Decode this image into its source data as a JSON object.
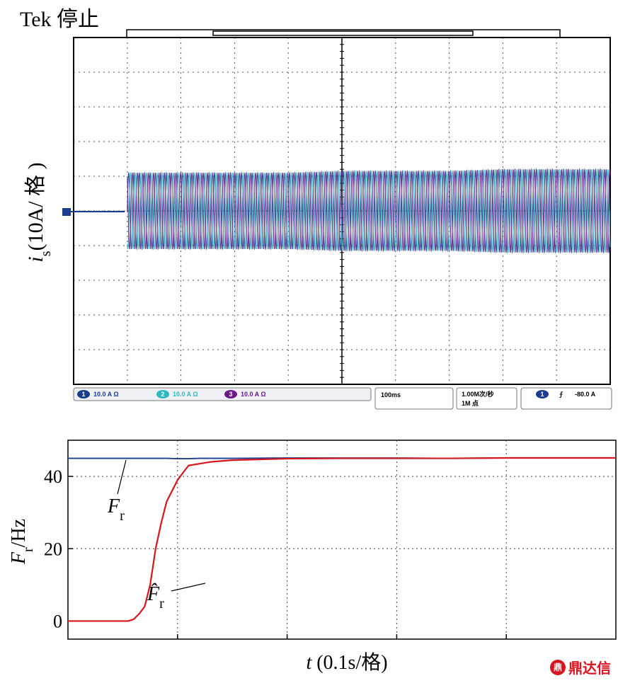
{
  "header": {
    "title": "Tek 停止"
  },
  "scope": {
    "ylabel_var": "i",
    "ylabel_sub": "s",
    "ylabel_unit": "(10A/ 格 )",
    "status": {
      "ch1": {
        "num": "1",
        "scale": "10.0 A Ω"
      },
      "ch2": {
        "num": "2",
        "scale": "10.0 A Ω"
      },
      "ch3": {
        "num": "3",
        "scale": "10.0 A Ω"
      },
      "timebase": "100ms",
      "sample_rate": "1.00M次/秒",
      "record_length": "1M 点",
      "trigger_channel": "1",
      "trigger_slope": "⨍",
      "trigger_level": "-80.0 A"
    },
    "colors": [
      "#1a3d8f",
      "#2fb8c0",
      "#6b1a87"
    ]
  },
  "chart_data": [
    {
      "type": "line",
      "title": "",
      "xlabel": "",
      "ylabel": "i_s(10A/ 格 )",
      "x": [
        0,
        0.09,
        0.1,
        0.2,
        0.3,
        0.4,
        0.5,
        0.6,
        0.7,
        0.8,
        0.9,
        1.0
      ],
      "series": [
        {
          "values": [
            0,
            0,
            11,
            11,
            11,
            11,
            11.5,
            11.5,
            11.5,
            12,
            12,
            12
          ]
        }
      ],
      "xlim": [
        0,
        1.0
      ],
      "ylim": [
        -50,
        50
      ],
      "grid": true
    },
    {
      "type": "line",
      "title": "",
      "xlabel_var": "t",
      "xlabel_unit": "(0.1s/格)",
      "ylabel_var": "F",
      "ylabel_sub": "r",
      "ylabel_unit": "/Hz",
      "yticks": [
        "0",
        "20",
        "40"
      ],
      "ylim": [
        -5,
        50
      ],
      "xlim": [
        0,
        0.5
      ],
      "grid": true,
      "x": [
        0,
        0.05,
        0.055,
        0.06,
        0.065,
        0.07,
        0.075,
        0.08,
        0.085,
        0.09,
        0.1,
        0.11,
        0.12,
        0.13,
        0.15,
        0.2,
        0.25,
        0.3,
        0.35,
        0.4,
        0.45,
        0.5
      ],
      "series": [
        {
          "name": "F_r",
          "values": [
            45,
            45,
            45,
            45,
            45,
            45,
            45,
            45,
            45,
            45,
            44.9,
            44.9,
            45,
            45,
            45,
            45.1,
            45.1,
            45.1,
            45,
            45.1,
            45.1,
            45.1
          ]
        },
        {
          "name": "F̂_r",
          "values": [
            0,
            0,
            0,
            0.5,
            2,
            4,
            10,
            20,
            27,
            33,
            39,
            43,
            43.5,
            44,
            44.5,
            44.9,
            45,
            45,
            45,
            45.1,
            45.1,
            45.1
          ]
        }
      ],
      "annotation_estimate": {
        "var": "F̂",
        "sub": "r"
      },
      "annotation_actual": {
        "var": "F",
        "sub": "r"
      }
    }
  ],
  "watermark": {
    "logo_glyph": "鼎",
    "text": "鼎达信"
  }
}
